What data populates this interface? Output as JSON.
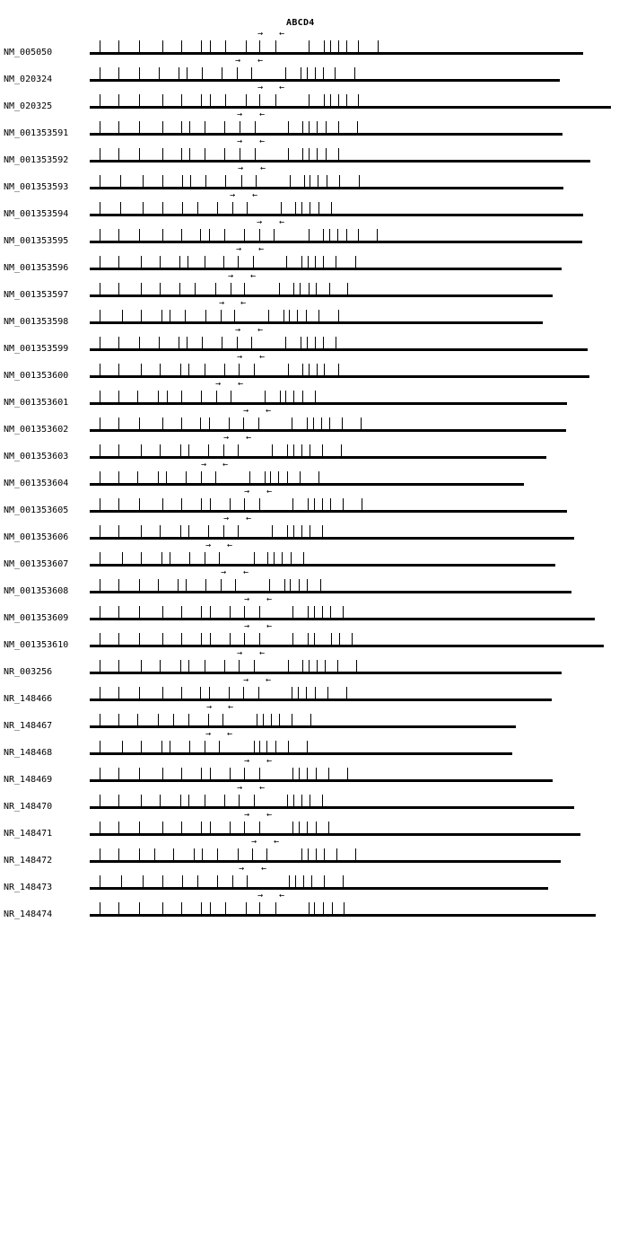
{
  "gene": {
    "name": "ABCD4"
  },
  "transcripts": [
    {
      "id": "NM_005050",
      "end": 650,
      "ticks": [
        111,
        132,
        155,
        181,
        202,
        224,
        234,
        251,
        274,
        289,
        307,
        344,
        361,
        368,
        377,
        386,
        399,
        421
      ],
      "fwd": 287,
      "rev": 311
    },
    {
      "id": "NM_020324",
      "end": 624,
      "ticks": [
        111,
        132,
        155,
        177,
        199,
        208,
        225,
        247,
        264,
        280,
        318,
        335,
        342,
        351,
        360,
        373,
        395
      ],
      "fwd": 262,
      "rev": 287
    },
    {
      "id": "NM_020325",
      "end": 681,
      "ticks": [
        111,
        132,
        155,
        181,
        202,
        224,
        234,
        251,
        274,
        289,
        307,
        344,
        361,
        368,
        377,
        386,
        399
      ],
      "fwd": 287,
      "rev": 311
    },
    {
      "id": "NM_001353591",
      "end": 627,
      "ticks": [
        111,
        132,
        155,
        181,
        202,
        211,
        228,
        250,
        267,
        284,
        321,
        337,
        344,
        353,
        363,
        377,
        398
      ],
      "fwd": 264,
      "rev": 289
    },
    {
      "id": "NM_001353592",
      "end": 658,
      "ticks": [
        111,
        132,
        155,
        181,
        202,
        211,
        228,
        250,
        267,
        284,
        321,
        337,
        344,
        353,
        363,
        377
      ],
      "fwd": 264,
      "rev": 289
    },
    {
      "id": "NM_001353593",
      "end": 628,
      "ticks": [
        111,
        134,
        159,
        181,
        203,
        212,
        229,
        251,
        269,
        285,
        323,
        339,
        345,
        354,
        364,
        378,
        400
      ],
      "fwd": 265,
      "rev": 290
    },
    {
      "id": "NM_001353594",
      "end": 650,
      "ticks": [
        111,
        134,
        159,
        181,
        203,
        220,
        242,
        259,
        275,
        313,
        329,
        336,
        345,
        355,
        369
      ],
      "fwd": 256,
      "rev": 281
    },
    {
      "id": "NM_001353595",
      "end": 649,
      "ticks": [
        111,
        132,
        155,
        181,
        202,
        223,
        233,
        250,
        272,
        289,
        305,
        344,
        360,
        367,
        376,
        386,
        399,
        420
      ],
      "fwd": 286,
      "rev": 311
    },
    {
      "id": "NM_001353596",
      "end": 626,
      "ticks": [
        111,
        132,
        157,
        178,
        200,
        209,
        228,
        249,
        265,
        282,
        319,
        336,
        343,
        351,
        360,
        374,
        396
      ],
      "fwd": 263,
      "rev": 288
    },
    {
      "id": "NM_001353597",
      "end": 616,
      "ticks": [
        111,
        132,
        157,
        178,
        200,
        217,
        240,
        257,
        272,
        311,
        327,
        334,
        344,
        352,
        367,
        387
      ],
      "fwd": 254,
      "rev": 279
    },
    {
      "id": "NM_001353598",
      "end": 605,
      "ticks": [
        111,
        136,
        157,
        180,
        189,
        206,
        229,
        246,
        261,
        299,
        316,
        322,
        331,
        341,
        355,
        377
      ],
      "fwd": 244,
      "rev": 268
    },
    {
      "id": "NM_001353599",
      "end": 655,
      "ticks": [
        111,
        132,
        155,
        177,
        199,
        208,
        225,
        247,
        264,
        280,
        318,
        335,
        342,
        351,
        360,
        374
      ],
      "fwd": 262,
      "rev": 287
    },
    {
      "id": "NM_001353600",
      "end": 657,
      "ticks": [
        111,
        132,
        157,
        178,
        201,
        210,
        228,
        250,
        266,
        283,
        321,
        337,
        344,
        353,
        361,
        377
      ],
      "fwd": 264,
      "rev": 289
    },
    {
      "id": "NM_001353601",
      "end": 632,
      "ticks": [
        111,
        132,
        153,
        176,
        186,
        202,
        224,
        241,
        257,
        295,
        312,
        318,
        327,
        337,
        351
      ],
      "fwd": 240,
      "rev": 265
    },
    {
      "id": "NM_001353602",
      "end": 631,
      "ticks": [
        111,
        132,
        155,
        181,
        202,
        223,
        233,
        255,
        271,
        288,
        325,
        342,
        349,
        358,
        367,
        381,
        402
      ],
      "fwd": 271,
      "rev": 296
    },
    {
      "id": "NM_001353603",
      "end": 609,
      "ticks": [
        111,
        132,
        157,
        178,
        201,
        210,
        232,
        249,
        265,
        303,
        320,
        327,
        336,
        345,
        359,
        380
      ],
      "fwd": 249,
      "rev": 274
    },
    {
      "id": "NM_001353604",
      "end": 584,
      "ticks": [
        111,
        132,
        153,
        176,
        185,
        207,
        224,
        240,
        278,
        295,
        301,
        310,
        320,
        334,
        355
      ],
      "fwd": 224,
      "rev": 248
    },
    {
      "id": "NM_001353605",
      "end": 632,
      "ticks": [
        111,
        132,
        155,
        181,
        202,
        224,
        234,
        256,
        272,
        289,
        326,
        343,
        350,
        359,
        368,
        382,
        403
      ],
      "fwd": 272,
      "rev": 297
    },
    {
      "id": "NM_001353606",
      "end": 640,
      "ticks": [
        111,
        132,
        157,
        178,
        201,
        210,
        232,
        249,
        265,
        303,
        320,
        327,
        336,
        345,
        359
      ],
      "fwd": 249,
      "rev": 274
    },
    {
      "id": "NM_001353607",
      "end": 619,
      "ticks": [
        111,
        136,
        157,
        180,
        189,
        211,
        228,
        244,
        283,
        298,
        305,
        314,
        324,
        338
      ],
      "fwd": 229,
      "rev": 253
    },
    {
      "id": "NM_001353608",
      "end": 637,
      "ticks": [
        111,
        132,
        155,
        176,
        198,
        207,
        229,
        246,
        262,
        300,
        317,
        323,
        333,
        342,
        357
      ],
      "fwd": 246,
      "rev": 271
    },
    {
      "id": "NM_001353609",
      "end": 663,
      "ticks": [
        111,
        132,
        155,
        181,
        202,
        224,
        234,
        256,
        272,
        289,
        326,
        343,
        350,
        359,
        368,
        382
      ],
      "fwd": 272,
      "rev": 297
    },
    {
      "id": "NM_001353610",
      "end": 673,
      "ticks": [
        111,
        132,
        155,
        181,
        202,
        224,
        234,
        256,
        272,
        289,
        326,
        343,
        350,
        369,
        378,
        392
      ],
      "fwd": 272,
      "rev": 297
    },
    {
      "id": "NR_003256",
      "end": 626,
      "ticks": [
        111,
        132,
        157,
        178,
        201,
        210,
        228,
        250,
        266,
        283,
        321,
        337,
        344,
        353,
        362,
        376,
        397
      ],
      "fwd": 264,
      "rev": 289
    },
    {
      "id": "NR_148466",
      "end": 615,
      "ticks": [
        111,
        132,
        155,
        181,
        202,
        223,
        233,
        255,
        271,
        288,
        325,
        332,
        341,
        351,
        365,
        386
      ],
      "fwd": 271,
      "rev": 296
    },
    {
      "id": "NR_148467",
      "end": 575,
      "ticks": [
        111,
        132,
        153,
        176,
        193,
        210,
        232,
        248,
        286,
        293,
        302,
        311,
        325,
        346
      ],
      "fwd": 230,
      "rev": 254
    },
    {
      "id": "NR_148468",
      "end": 571,
      "ticks": [
        111,
        136,
        157,
        180,
        189,
        211,
        228,
        244,
        283,
        289,
        297,
        307,
        321,
        342
      ],
      "fwd": 229,
      "rev": 253
    },
    {
      "id": "NR_148469",
      "end": 616,
      "ticks": [
        111,
        132,
        155,
        181,
        202,
        224,
        234,
        256,
        272,
        289,
        326,
        333,
        342,
        352,
        366,
        387
      ],
      "fwd": 272,
      "rev": 297
    },
    {
      "id": "NR_148470",
      "end": 640,
      "ticks": [
        111,
        132,
        157,
        178,
        201,
        210,
        228,
        250,
        266,
        283,
        320,
        327,
        336,
        345,
        359
      ],
      "fwd": 264,
      "rev": 289
    },
    {
      "id": "NR_148471",
      "end": 647,
      "ticks": [
        111,
        132,
        155,
        181,
        202,
        224,
        234,
        256,
        272,
        289,
        326,
        333,
        342,
        352,
        366
      ],
      "fwd": 272,
      "rev": 297
    },
    {
      "id": "NR_148472",
      "end": 625,
      "ticks": [
        111,
        132,
        155,
        172,
        193,
        216,
        225,
        242,
        265,
        281,
        297,
        336,
        343,
        352,
        361,
        375,
        396
      ],
      "fwd": 280,
      "rev": 305
    },
    {
      "id": "NR_148473",
      "end": 611,
      "ticks": [
        111,
        135,
        159,
        181,
        203,
        220,
        242,
        259,
        275,
        322,
        329,
        338,
        347,
        361,
        382
      ],
      "fwd": 266,
      "rev": 291
    },
    {
      "id": "NR_148474",
      "end": 664,
      "ticks": [
        111,
        132,
        155,
        181,
        202,
        224,
        234,
        251,
        274,
        289,
        307,
        344,
        350,
        360,
        370,
        383
      ],
      "fwd": 287,
      "rev": 311
    }
  ],
  "glyphs": {
    "fwd": "→",
    "rev": "←"
  }
}
